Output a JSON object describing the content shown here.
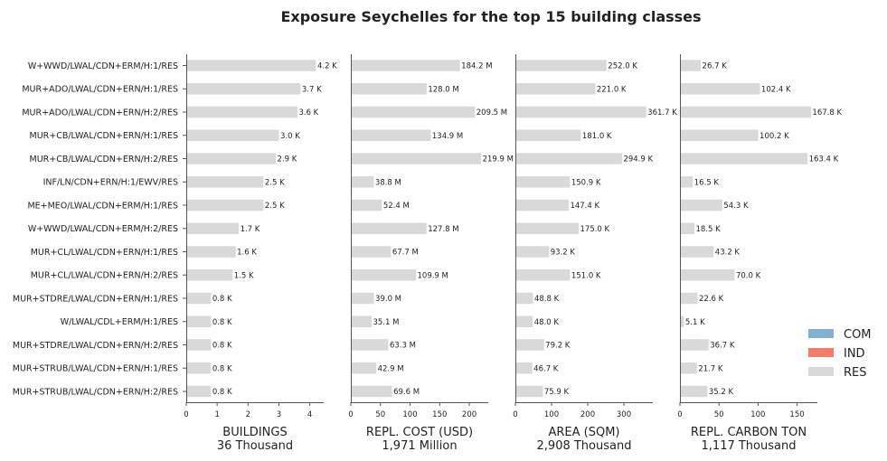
{
  "chart_data": {
    "type": "bar",
    "orientation": "horizontal",
    "stacked": true,
    "title": "Exposure Seychelles for the top 15 building classes",
    "categories": [
      "W+WWD/LWAL/CDN+ERM/H:1/RES",
      "MUR+ADO/LWAL/CDN+ERN/H:1/RES",
      "MUR+ADO/LWAL/CDN+ERN/H:2/RES",
      "MUR+CB/LWAL/CDN+ERN/H:1/RES",
      "MUR+CB/LWAL/CDN+ERN/H:2/RES",
      "INF/LN/CDN+ERN/H:1/EWV/RES",
      "ME+MEO/LWAL/CDN+ERM/H:1/RES",
      "W+WWD/LWAL/CDN+ERM/H:2/RES",
      "MUR+CL/LWAL/CDN+ERN/H:1/RES",
      "MUR+CL/LWAL/CDN+ERN/H:2/RES",
      "MUR+STDRE/LWAL/CDN+ERN/H:1/RES",
      "W/LWAL/CDL+ERM/H:1/RES",
      "MUR+STDRE/LWAL/CDN+ERN/H:2/RES",
      "MUR+STRUB/LWAL/CDN+ERN/H:1/RES",
      "MUR+STRUB/LWAL/CDN+ERN/H:2/RES"
    ],
    "legend": {
      "position": "right",
      "entries": [
        {
          "name": "COM",
          "color": "#82b0d2"
        },
        {
          "name": "IND",
          "color": "#f47c6b"
        },
        {
          "name": "RES",
          "color": "#d9d9d9"
        }
      ]
    },
    "panels": [
      {
        "xlabel": "BUILDINGS",
        "total": "36 Thousand",
        "xlim": [
          0,
          4.45
        ],
        "xticks": [
          0,
          1,
          2,
          3,
          4
        ],
        "series": [
          {
            "name": "RES",
            "values": [
              4.2,
              3.7,
              3.6,
              3.0,
              2.9,
              2.5,
              2.5,
              1.7,
              1.6,
              1.5,
              0.8,
              0.8,
              0.8,
              0.8,
              0.8
            ]
          }
        ],
        "labels": [
          "4.2 K",
          "3.7 K",
          "3.6 K",
          "3.0 K",
          "2.9 K",
          "2.5 K",
          "2.5 K",
          "1.7 K",
          "1.6 K",
          "1.5 K",
          "0.8 K",
          "0.8 K",
          "0.8 K",
          "0.8 K",
          "0.8 K"
        ]
      },
      {
        "xlabel": "REPL. COST (USD)",
        "total": "1,971 Million",
        "xlim": [
          0,
          232
        ],
        "xticks": [
          0,
          50,
          100,
          150,
          200
        ],
        "series": [
          {
            "name": "RES",
            "values": [
              184.2,
              128.0,
              209.5,
              134.9,
              219.9,
              38.8,
              52.4,
              127.8,
              67.7,
              109.9,
              39.0,
              35.1,
              63.3,
              42.9,
              69.6
            ]
          }
        ],
        "labels": [
          "184.2 M",
          "128.0 M",
          "209.5 M",
          "134.9 M",
          "219.9 M",
          "38.8 M",
          "52.4 M",
          "127.8 M",
          "67.7 M",
          "109.9 M",
          "39.0 M",
          "35.1 M",
          "63.3 M",
          "42.9 M",
          "69.6 M"
        ]
      },
      {
        "xlabel": "AREA (SQM)",
        "total": "2,908 Thousand",
        "xlim": [
          0,
          380
        ],
        "xticks": [
          0,
          100,
          200,
          300
        ],
        "series": [
          {
            "name": "RES",
            "values": [
              252.0,
              221.0,
              361.7,
              181.0,
              294.9,
              150.9,
              147.4,
              175.0,
              93.2,
              151.0,
              48.8,
              48.0,
              79.2,
              46.7,
              75.9
            ]
          }
        ],
        "labels": [
          "252.0 K",
          "221.0 K",
          "361.7 K",
          "181.0 K",
          "294.9 K",
          "150.9 K",
          "147.4 K",
          "175.0 K",
          "93.2 K",
          "151.0 K",
          "48.8 K",
          "48.0 K",
          "79.2 K",
          "46.7 K",
          "75.9 K"
        ]
      },
      {
        "xlabel": "REPL. CARBON TON",
        "total": "1,117 Thousand",
        "xlim": [
          0,
          176
        ],
        "xticks": [
          0,
          50,
          100,
          150
        ],
        "series": [
          {
            "name": "RES",
            "values": [
              26.7,
              102.4,
              167.8,
              100.2,
              163.4,
              16.5,
              54.3,
              18.5,
              43.2,
              70.0,
              22.6,
              5.1,
              36.7,
              21.7,
              35.2
            ]
          }
        ],
        "labels": [
          "26.7 K",
          "102.4 K",
          "167.8 K",
          "100.2 K",
          "163.4 K",
          "16.5 K",
          "54.3 K",
          "18.5 K",
          "43.2 K",
          "70.0 K",
          "22.6 K",
          "5.1 K",
          "36.7 K",
          "21.7 K",
          "35.2 K"
        ]
      }
    ]
  }
}
